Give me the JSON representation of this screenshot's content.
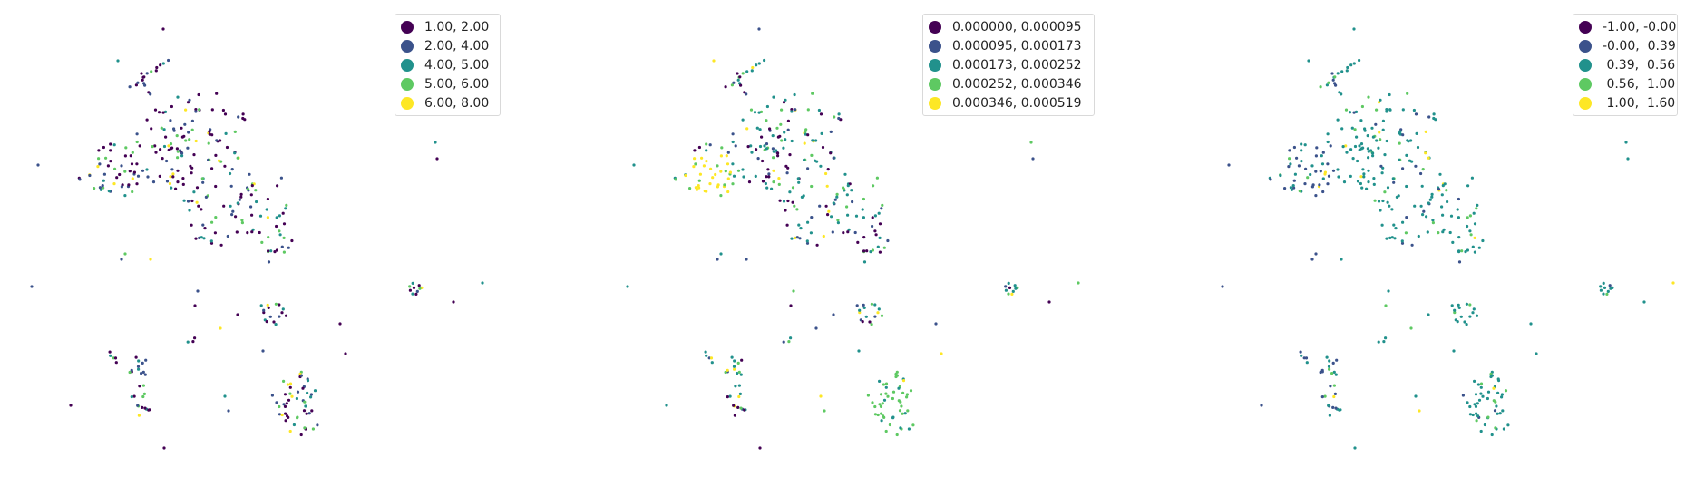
{
  "colors": {
    "viridis": [
      "#440154",
      "#3b528b",
      "#21918c",
      "#5ec962",
      "#fde725"
    ]
  },
  "chart_data": [
    {
      "type": "scatter",
      "title": "",
      "legend_position": "top-right",
      "axis": "off",
      "legend": [
        "1.00, 2.00",
        "2.00, 4.00",
        "4.00, 5.00",
        "5.00, 6.00",
        "6.00, 8.00"
      ]
    },
    {
      "type": "scatter",
      "title": "",
      "legend_position": "top-right",
      "axis": "off",
      "legend": [
        "0.000000, 0.000095",
        "0.000095, 0.000173",
        "0.000173, 0.000252",
        "0.000252, 0.000346",
        "0.000346, 0.000519"
      ]
    },
    {
      "type": "scatter",
      "title": "",
      "legend_position": "top-right",
      "axis": "off",
      "legend": [
        "-1.00, -0.00",
        "-0.00,  0.39",
        " 0.39,  0.56",
        " 0.56,  1.00",
        " 1.00,  1.60"
      ]
    }
  ]
}
